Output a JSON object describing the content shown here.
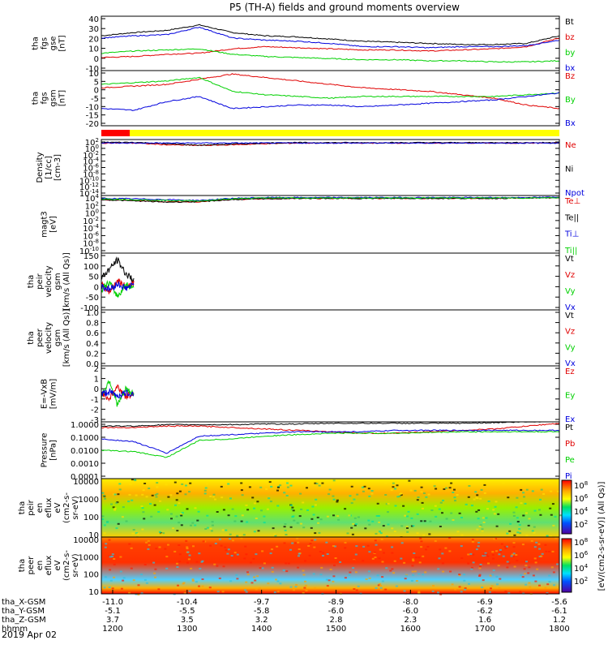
{
  "title": "P5 (TH-A) fields and ground moments overview",
  "date_label": "2019 Apr 02",
  "colors": {
    "black": "#000000",
    "red": "#e00000",
    "green": "#00d000",
    "blue": "#0000dd"
  },
  "chart_data": [
    {
      "type": "line",
      "ylabel": [
        "tha",
        "fgs",
        "gse",
        "[nT]"
      ],
      "ylim": [
        -10,
        40
      ],
      "yticks": [
        "40",
        "30",
        "20",
        "10",
        "0",
        "-10"
      ],
      "series": [
        {
          "name": "Bt",
          "color": "black",
          "values": [
            22,
            25,
            27,
            32,
            25,
            22,
            21,
            19,
            17,
            16,
            15,
            14,
            14,
            15,
            22
          ]
        },
        {
          "name": "bz",
          "color": "red",
          "values": [
            2,
            3,
            5,
            6,
            10,
            12,
            11,
            10,
            9,
            9,
            8,
            9,
            10,
            12,
            20
          ]
        },
        {
          "name": "by",
          "color": "green",
          "values": [
            6,
            8,
            9,
            10,
            5,
            3,
            2,
            1,
            0,
            0,
            -1,
            -1,
            -2,
            -2,
            -1
          ]
        },
        {
          "name": "bx",
          "color": "blue",
          "values": [
            20,
            22,
            23,
            30,
            20,
            18,
            17,
            15,
            12,
            12,
            11,
            12,
            12,
            13,
            18
          ]
        }
      ]
    },
    {
      "type": "line",
      "ylabel": [
        "tha",
        "fgs",
        "gsm",
        "[nT]"
      ],
      "ylim": [
        -22,
        10
      ],
      "yticks": [
        "10",
        "5",
        "0",
        "-5",
        "-10",
        "-15",
        "-20"
      ],
      "series": [
        {
          "name": "Bz",
          "color": "red",
          "values": [
            0,
            1,
            2,
            5,
            8,
            6,
            4,
            2,
            0,
            -1,
            -2,
            -4,
            -6,
            -10,
            -12
          ]
        },
        {
          "name": "By",
          "color": "green",
          "values": [
            2,
            3,
            4,
            6,
            -2,
            -4,
            -5,
            -6,
            -5,
            -5,
            -5,
            -5,
            -5,
            -4,
            -3
          ]
        },
        {
          "name": "Bx",
          "color": "blue",
          "values": [
            -12,
            -13,
            -8,
            -5,
            -12,
            -11,
            -10,
            -10,
            -11,
            -10,
            -9,
            -8,
            -7,
            -5,
            -3
          ]
        }
      ]
    },
    {
      "type": "line",
      "ylabel": [
        "Density",
        "[1/cc]",
        "[cm-3]"
      ],
      "ylim": [
        -14,
        2
      ],
      "log": true,
      "yticks": [
        "10^2",
        "10^0",
        "10^-2",
        "10^-4",
        "10^-6",
        "10^-8",
        "10^-10",
        "10^-12",
        "10^-14"
      ],
      "series": [
        {
          "name": "Ne",
          "color": "red",
          "values": [
            1,
            1,
            0.5,
            0.3,
            0.5,
            0.8,
            1,
            1,
            1,
            1,
            1,
            1,
            1,
            1,
            1
          ]
        },
        {
          "name": "Ni",
          "color": "black",
          "values": [
            1.2,
            1.2,
            0.8,
            0.4,
            0.7,
            1,
            1.1,
            1.1,
            1.1,
            1.1,
            1.1,
            1.1,
            1.1,
            1.1,
            1.1
          ]
        },
        {
          "name": "Npot",
          "color": "blue",
          "values": [
            1,
            1,
            1,
            1,
            1,
            1,
            1,
            1,
            1,
            1,
            1,
            1,
            1,
            1,
            1
          ]
        }
      ]
    },
    {
      "type": "line",
      "ylabel": [
        "magt3",
        "[eV]"
      ],
      "ylim": [
        -10,
        4
      ],
      "log": true,
      "yticks": [
        "10^4",
        "10^2",
        "10^0",
        "10^-2",
        "10^-4",
        "10^-6",
        "10^-8",
        "10^-10"
      ],
      "series": [
        {
          "name": "Te⊥",
          "color": "red",
          "values": [
            3,
            2.8,
            2.5,
            2.5,
            3,
            3.2,
            3.3,
            3.3,
            3.3,
            3.3,
            3.3,
            3.3,
            3.3,
            3.4,
            3.5
          ]
        },
        {
          "name": "Te||",
          "color": "black",
          "values": [
            3,
            2.7,
            2.4,
            2.5,
            3,
            3.2,
            3.3,
            3.3,
            3.3,
            3.3,
            3.3,
            3.3,
            3.3,
            3.4,
            3.5
          ]
        },
        {
          "name": "Ti⊥",
          "color": "blue",
          "values": [
            3.3,
            3.2,
            3,
            2.8,
            3.3,
            3.5,
            3.5,
            3.5,
            3.5,
            3.5,
            3.5,
            3.5,
            3.5,
            3.5,
            3.6
          ]
        },
        {
          "name": "Ti||",
          "color": "green",
          "values": [
            3.2,
            3,
            2.8,
            2.7,
            3.2,
            3.4,
            3.4,
            3.4,
            3.4,
            3.4,
            3.4,
            3.4,
            3.4,
            3.4,
            3.5
          ]
        }
      ]
    },
    {
      "type": "line",
      "ylabel": [
        "tha",
        "peir",
        "velocity",
        "gsm",
        "[km/s (All Qs)]"
      ],
      "ylim": [
        -100,
        150
      ],
      "yticks": [
        "150",
        "100",
        "50",
        "0",
        "-50",
        "-100"
      ],
      "series": [
        {
          "name": "Vt",
          "color": "black",
          "values": [
            40,
            80,
            120,
            60,
            30
          ]
        },
        {
          "name": "Vz",
          "color": "red",
          "values": [
            10,
            -20,
            30,
            0,
            20
          ]
        },
        {
          "name": "Vy",
          "color": "green",
          "values": [
            -10,
            20,
            -40,
            10,
            0
          ]
        },
        {
          "name": "Vx",
          "color": "blue",
          "values": [
            5,
            -10,
            15,
            -5,
            10
          ]
        }
      ]
    },
    {
      "type": "line",
      "ylabel": [
        "tha",
        "peer",
        "velocity",
        "gsm",
        "[km/s (All Qs)]"
      ],
      "ylim": [
        0,
        1
      ],
      "yticks": [
        "1.0",
        "0.8",
        "0.6",
        "0.4",
        "0.2",
        "0.0"
      ],
      "series": [
        {
          "name": "Vt",
          "color": "black",
          "values": []
        },
        {
          "name": "Vz",
          "color": "red",
          "values": []
        },
        {
          "name": "Vy",
          "color": "green",
          "values": []
        },
        {
          "name": "Vx",
          "color": "blue",
          "values": []
        }
      ]
    },
    {
      "type": "line",
      "ylabel": [
        "E=-VxB",
        "[mV/m]"
      ],
      "ylim": [
        -3,
        3
      ],
      "yticks": [
        "2",
        "1",
        "0",
        "-1",
        "-2",
        "-3"
      ],
      "series": [
        {
          "name": "Ez",
          "color": "red",
          "values": [
            0.2,
            -0.5,
            0.8,
            -0.3,
            0.1
          ]
        },
        {
          "name": "Ey",
          "color": "green",
          "values": [
            -0.3,
            1.5,
            -1.2,
            0.5,
            0
          ]
        },
        {
          "name": "Ex",
          "color": "blue",
          "values": [
            0,
            0.2,
            -0.2,
            0.1,
            0
          ]
        }
      ]
    },
    {
      "type": "line",
      "ylabel": [
        "Pressure",
        "[nPa]"
      ],
      "ylim": [
        -4,
        0
      ],
      "log": true,
      "yticks": [
        "1.0000",
        "0.1000",
        "0.0100",
        "0.0010",
        "0.0001"
      ],
      "series": [
        {
          "name": "Pt",
          "color": "black",
          "values": [
            -0.3,
            -0.3,
            -0.2,
            -0.2,
            -0.2,
            -0.15,
            -0.15,
            -0.1,
            -0.1,
            -0.1,
            -0.1,
            -0.1,
            -0.05,
            0,
            0.05
          ]
        },
        {
          "name": "Pb",
          "color": "red",
          "values": [
            -0.4,
            -0.4,
            -0.3,
            -0.3,
            -0.4,
            -0.5,
            -0.6,
            -0.7,
            -0.8,
            -0.8,
            -0.7,
            -0.6,
            -0.5,
            -0.3,
            -0.1
          ]
        },
        {
          "name": "Pe",
          "color": "green",
          "values": [
            -2,
            -2.1,
            -2.5,
            -1.3,
            -1.2,
            -1,
            -0.9,
            -0.8,
            -0.8,
            -0.8,
            -0.75,
            -0.7,
            -0.7,
            -0.7,
            -0.7
          ]
        },
        {
          "name": "Pi",
          "color": "blue",
          "values": [
            -1.2,
            -1.4,
            -2.2,
            -1,
            -0.9,
            -0.8,
            -0.7,
            -0.7,
            -0.7,
            -0.6,
            -0.6,
            -0.6,
            -0.6,
            -0.6,
            -0.6
          ]
        }
      ]
    },
    {
      "type": "heatmap",
      "ylabel": [
        "tha",
        "peir",
        "en",
        "eflux",
        "eV",
        "(cm2-s-",
        "sr-eV)"
      ],
      "yticks": [
        "10000",
        "1000",
        "100",
        "10"
      ]
    },
    {
      "type": "heatmap",
      "ylabel": [
        "tha",
        "peer",
        "en",
        "eflux",
        "eV",
        "(cm2-s-",
        "sr-eV)"
      ],
      "yticks": [
        "10000",
        "1000",
        "100",
        "10"
      ]
    }
  ],
  "colorbar": {
    "ticks": [
      "10^8",
      "10^6",
      "10^4",
      "10^2",
      "10^8",
      "10^6",
      "10^4",
      "10^2"
    ],
    "label": "[eV/(cm2-s-sr-eV)] (All Qs)]"
  },
  "x_axis": {
    "row_labels": [
      "tha_X-GSM",
      "tha_Y-GSM",
      "tha_Z-GSM",
      "hhmm"
    ],
    "columns": [
      [
        "-11.0",
        "-5.1",
        "3.7",
        "1200"
      ],
      [
        "-10.4",
        "-5.5",
        "3.5",
        "1300"
      ],
      [
        "-9.7",
        "-5.8",
        "3.2",
        "1400"
      ],
      [
        "-8.9",
        "-6.0",
        "2.8",
        "1500"
      ],
      [
        "-8.0",
        "-6.0",
        "2.3",
        "1600"
      ],
      [
        "-6.9",
        "-6.2",
        "1.6",
        "1700"
      ],
      [
        "-5.6",
        "-6.1",
        "1.2",
        "1800"
      ]
    ]
  }
}
